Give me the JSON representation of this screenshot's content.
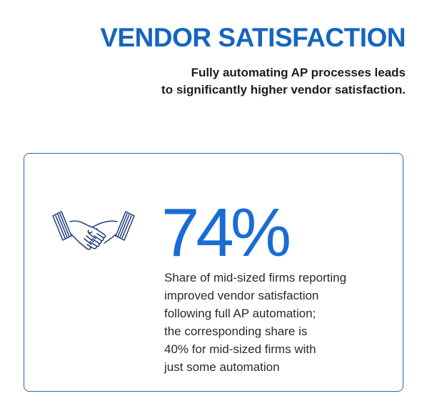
{
  "header": {
    "title": "VENDOR SATISFACTION",
    "subtitle_lines": [
      "Fully automating AP processes leads",
      "to significantly higher vendor satisfaction."
    ]
  },
  "stat_card": {
    "icon": "handshake-icon",
    "value": "74%",
    "description_lines": [
      "Share of mid-sized firms reporting",
      "improved vendor satisfaction",
      "following full AP automation;",
      "the corresponding share is",
      "40% for mid-sized firms with",
      "just some automation"
    ]
  },
  "colors": {
    "title": "#1565c0",
    "stat_value": "#1a6cd4",
    "card_border": "#2f67a8",
    "icon_stroke": "#1e3a7b"
  }
}
